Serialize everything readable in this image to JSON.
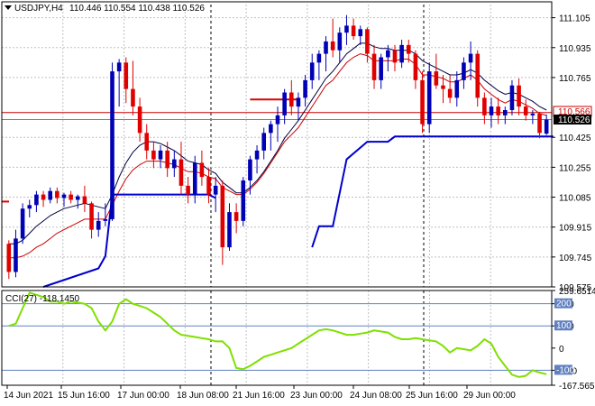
{
  "header": {
    "symbol": "USDJPY,H4",
    "ohlc": "110.446 110.554 110.438 110.526"
  },
  "colors": {
    "bull": "#0000b4",
    "bear": "#e00000",
    "ma_fast": "#cc0000",
    "ma_slow": "#000040",
    "ma_long": "#0000cc",
    "cci": "#7fe000",
    "grid": "#c0c0c0",
    "price_line": "#cc0000",
    "level_line": "#6080c0"
  },
  "chart_data": [
    {
      "type": "candlestick",
      "panel": "price",
      "symbol": "USDJPY",
      "timeframe": "H4",
      "y_ticks": [
        "111.105",
        "110.935",
        "110.765",
        "110.425",
        "110.255",
        "110.085",
        "109.915",
        "109.745",
        "109.575"
      ],
      "ylim": [
        109.575,
        111.18
      ],
      "x_ticks": [
        "14 Jun 2021",
        "15 Jun 16:00",
        "17 Jun 00:00",
        "18 Jun 08:00",
        "21 Jun 16:00",
        "23 Jun 00:00",
        "24 Jun 08:00",
        "25 Jun 16:00",
        "29 Jun 00:00"
      ],
      "candles": [
        [
          109.82,
          109.84,
          109.62,
          109.66
        ],
        [
          109.66,
          109.9,
          109.63,
          109.85
        ],
        [
          109.85,
          110.05,
          109.82,
          110.02
        ],
        [
          110.02,
          110.07,
          109.97,
          110.04
        ],
        [
          110.04,
          110.12,
          110.0,
          110.1
        ],
        [
          110.1,
          110.12,
          110.03,
          110.07
        ],
        [
          110.07,
          110.14,
          110.05,
          110.12
        ],
        [
          110.12,
          110.14,
          110.05,
          110.08
        ],
        [
          110.08,
          110.11,
          110.03,
          110.1
        ],
        [
          110.1,
          110.12,
          110.05,
          110.07
        ],
        [
          110.07,
          110.1,
          110.02,
          110.09
        ],
        [
          110.09,
          110.15,
          110.0,
          110.05
        ],
        [
          110.05,
          110.06,
          109.85,
          109.9
        ],
        [
          109.9,
          110.0,
          109.86,
          109.95
        ],
        [
          109.95,
          110.05,
          109.92,
          109.96
        ],
        [
          109.96,
          110.85,
          109.95,
          110.8
        ],
        [
          110.8,
          110.87,
          110.6,
          110.85
        ],
        [
          110.85,
          110.88,
          110.62,
          110.7
        ],
        [
          110.7,
          110.86,
          110.55,
          110.6
        ],
        [
          110.6,
          110.65,
          110.4,
          110.45
        ],
        [
          110.45,
          110.5,
          110.3,
          110.35
        ],
        [
          110.35,
          110.4,
          110.25,
          110.3
        ],
        [
          110.3,
          110.38,
          110.25,
          110.35
        ],
        [
          110.35,
          110.4,
          110.2,
          110.25
        ],
        [
          110.25,
          110.35,
          110.2,
          110.3
        ],
        [
          110.3,
          110.4,
          110.1,
          110.15
        ],
        [
          110.15,
          110.2,
          110.05,
          110.1
        ],
        [
          110.1,
          110.32,
          110.05,
          110.28
        ],
        [
          110.28,
          110.35,
          110.15,
          110.2
        ],
        [
          110.2,
          110.25,
          110.05,
          110.1
        ],
        [
          110.1,
          110.2,
          110.0,
          110.15
        ],
        [
          110.15,
          110.18,
          109.7,
          109.8
        ],
        [
          109.8,
          110.05,
          109.78,
          110.0
        ],
        [
          110.0,
          110.05,
          109.88,
          109.95
        ],
        [
          109.95,
          110.2,
          109.92,
          110.18
        ],
        [
          110.18,
          110.32,
          110.1,
          110.3
        ],
        [
          110.3,
          110.38,
          110.22,
          110.35
        ],
        [
          110.35,
          110.48,
          110.3,
          110.45
        ],
        [
          110.45,
          110.52,
          110.35,
          110.5
        ],
        [
          110.5,
          110.6,
          110.4,
          110.55
        ],
        [
          110.55,
          110.7,
          110.5,
          110.68
        ],
        [
          110.68,
          110.75,
          110.55,
          110.6
        ],
        [
          110.6,
          110.68,
          110.52,
          110.65
        ],
        [
          110.65,
          110.78,
          110.6,
          110.75
        ],
        [
          110.75,
          110.9,
          110.7,
          110.85
        ],
        [
          110.85,
          110.92,
          110.75,
          110.9
        ],
        [
          110.9,
          111.0,
          110.8,
          110.97
        ],
        [
          110.97,
          111.1,
          110.88,
          110.92
        ],
        [
          110.92,
          111.05,
          110.85,
          111.02
        ],
        [
          111.02,
          111.12,
          110.95,
          111.06
        ],
        [
          111.06,
          111.1,
          110.98,
          111.0
        ],
        [
          111.0,
          111.06,
          110.95,
          111.04
        ],
        [
          111.04,
          111.05,
          110.85,
          110.9
        ],
        [
          110.9,
          110.95,
          110.7,
          110.75
        ],
        [
          110.75,
          110.9,
          110.7,
          110.88
        ],
        [
          110.88,
          110.95,
          110.8,
          110.92
        ],
        [
          110.92,
          110.95,
          110.8,
          110.85
        ],
        [
          110.85,
          110.98,
          110.82,
          110.95
        ],
        [
          110.95,
          110.98,
          110.85,
          110.9
        ],
        [
          110.9,
          110.92,
          110.7,
          110.75
        ],
        [
          110.75,
          110.8,
          110.45,
          110.5
        ],
        [
          110.5,
          110.85,
          110.45,
          110.8
        ],
        [
          110.8,
          110.9,
          110.7,
          110.72
        ],
        [
          110.72,
          110.78,
          110.62,
          110.7
        ],
        [
          110.7,
          110.78,
          110.62,
          110.65
        ],
        [
          110.65,
          110.8,
          110.6,
          110.75
        ],
        [
          110.75,
          110.88,
          110.7,
          110.85
        ],
        [
          110.85,
          110.97,
          110.75,
          110.9
        ],
        [
          110.9,
          110.92,
          110.6,
          110.65
        ],
        [
          110.65,
          110.68,
          110.5,
          110.55
        ],
        [
          110.55,
          110.65,
          110.48,
          110.6
        ],
        [
          110.6,
          110.65,
          110.5,
          110.55
        ],
        [
          110.55,
          110.6,
          110.5,
          110.58
        ],
        [
          110.58,
          110.75,
          110.55,
          110.72
        ],
        [
          110.72,
          110.76,
          110.55,
          110.6
        ],
        [
          110.6,
          110.64,
          110.52,
          110.55
        ],
        [
          110.55,
          110.58,
          110.5,
          110.56
        ],
        [
          110.56,
          110.57,
          110.42,
          110.45
        ],
        [
          110.446,
          110.554,
          110.438,
          110.526
        ]
      ],
      "indicators": {
        "ma_slow": [
          109.82,
          109.82,
          109.84,
          109.88,
          109.92,
          109.95,
          109.98,
          110.0,
          110.02,
          110.03,
          110.04,
          110.05,
          110.04,
          110.03,
          110.02,
          110.1,
          110.2,
          110.28,
          110.34,
          110.38,
          110.4,
          110.4,
          110.39,
          110.37,
          110.35,
          110.32,
          110.29,
          110.28,
          110.27,
          110.24,
          110.22,
          110.17,
          110.14,
          110.11,
          110.11,
          110.14,
          110.18,
          110.23,
          110.29,
          110.35,
          110.42,
          110.47,
          110.52,
          110.58,
          110.64,
          110.7,
          110.76,
          110.8,
          110.85,
          110.9,
          110.93,
          110.96,
          110.96,
          110.94,
          110.93,
          110.93,
          110.92,
          110.92,
          110.92,
          110.9,
          110.86,
          110.84,
          110.82,
          110.8,
          110.78,
          110.78,
          110.79,
          110.81,
          110.79,
          110.75,
          110.72,
          110.69,
          110.67,
          110.68,
          110.67,
          110.65,
          110.63,
          110.6,
          110.58
        ],
        "ma_fast": [
          109.74,
          109.74,
          109.75,
          109.77,
          109.8,
          109.82,
          109.85,
          109.88,
          109.9,
          109.92,
          109.94,
          109.96,
          109.96,
          109.96,
          109.96,
          110.04,
          110.12,
          110.19,
          110.24,
          110.27,
          110.29,
          110.29,
          110.29,
          110.28,
          110.27,
          110.25,
          110.23,
          110.23,
          110.22,
          110.2,
          110.19,
          110.14,
          110.12,
          110.1,
          110.1,
          110.13,
          110.17,
          110.22,
          110.28,
          110.34,
          110.4,
          110.44,
          110.48,
          110.54,
          110.6,
          110.66,
          110.72,
          110.75,
          110.8,
          110.85,
          110.88,
          110.9,
          110.89,
          110.86,
          110.86,
          110.86,
          110.86,
          110.87,
          110.87,
          110.84,
          110.78,
          110.78,
          110.77,
          110.76,
          110.74,
          110.74,
          110.76,
          110.78,
          110.75,
          110.7,
          110.67,
          110.64,
          110.62,
          110.64,
          110.63,
          110.61,
          110.59,
          110.56,
          110.55
        ],
        "ma_long_segments": [
          [
            [
              5,
              109.575
            ],
            [
              13,
              109.68
            ],
            [
              14,
              109.75
            ],
            [
              15,
              110.1
            ],
            [
              29,
              110.1
            ],
            [
              30,
              110.08
            ]
          ],
          [
            [
              44,
              109.8
            ],
            [
              45,
              109.92
            ],
            [
              47,
              109.92
            ],
            [
              49,
              110.3
            ],
            [
              52,
              110.4
            ],
            [
              55,
              110.4
            ],
            [
              56,
              110.43
            ],
            [
              79,
              110.43
            ]
          ]
        ],
        "red_segment": [
          [
            35,
            110.64
          ],
          [
            42,
            110.64
          ]
        ]
      },
      "price_lines": {
        "bid_label": "110.526",
        "ask_label": "110.566",
        "bid": 110.526,
        "ask": 110.566
      }
    },
    {
      "type": "line",
      "panel": "cci",
      "title": "CCI(27) -118.1450",
      "y_ticks": [
        "259.6514",
        "200",
        "100",
        "0",
        "-100",
        "-167.5659"
      ],
      "ylim": [
        -167.5659,
        259.6514
      ],
      "levels": [
        200,
        100,
        -100
      ],
      "values": [
        100,
        110,
        180,
        250,
        240,
        230,
        210,
        210,
        200,
        210,
        205,
        200,
        180,
        120,
        80,
        120,
        200,
        220,
        200,
        190,
        180,
        160,
        140,
        110,
        80,
        60,
        55,
        50,
        45,
        40,
        30,
        30,
        0,
        -90,
        -95,
        -80,
        -60,
        -40,
        -30,
        -20,
        -10,
        0,
        20,
        40,
        60,
        80,
        85,
        80,
        70,
        60,
        60,
        65,
        70,
        80,
        75,
        70,
        50,
        40,
        40,
        45,
        40,
        35,
        30,
        10,
        -20,
        0,
        -5,
        -10,
        10,
        40,
        20,
        -40,
        -80,
        -120,
        -130,
        -125,
        -100,
        -110,
        -118
      ]
    }
  ]
}
